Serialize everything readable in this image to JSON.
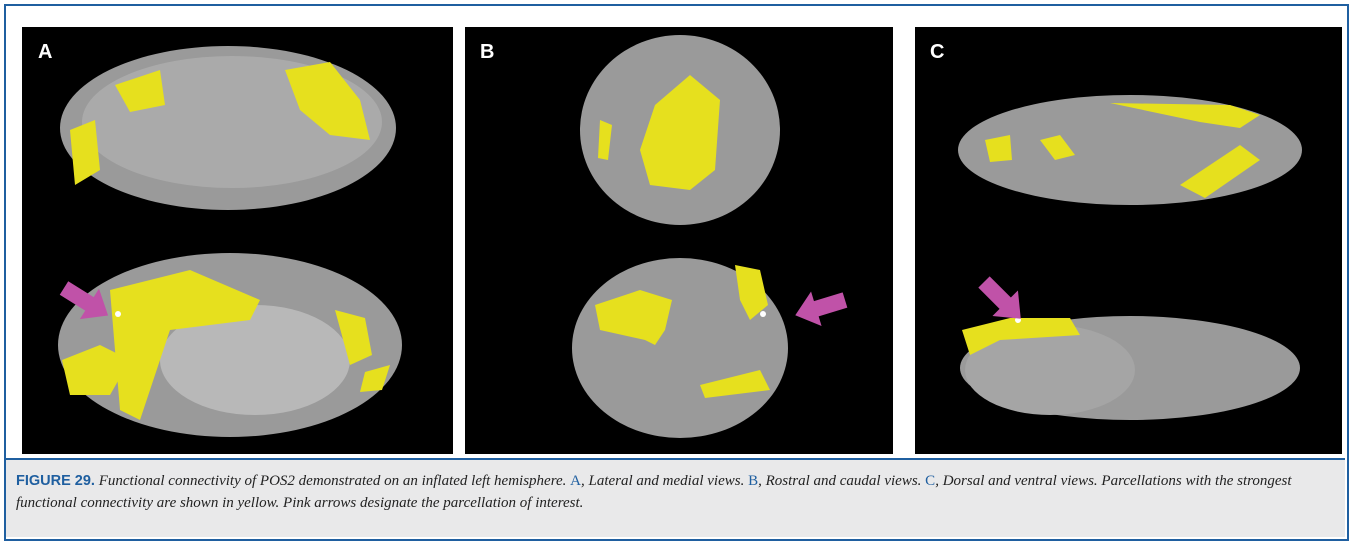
{
  "figure": {
    "panels": [
      {
        "label": "A"
      },
      {
        "label": "B"
      },
      {
        "label": "C"
      }
    ],
    "caption": {
      "label": "FIGURE 29.",
      "segments": [
        "Functional connectivity of POS2 demonstrated on an inflated left hemisphere. ",
        "A",
        ", Lateral and medial views. ",
        "B",
        ", Rostral and caudal views. ",
        "C",
        ", Dorsal and ventral views. Parcellations with the strongest functional connectivity are shown in yellow. Pink arrows designate the parcellation of interest."
      ]
    }
  }
}
